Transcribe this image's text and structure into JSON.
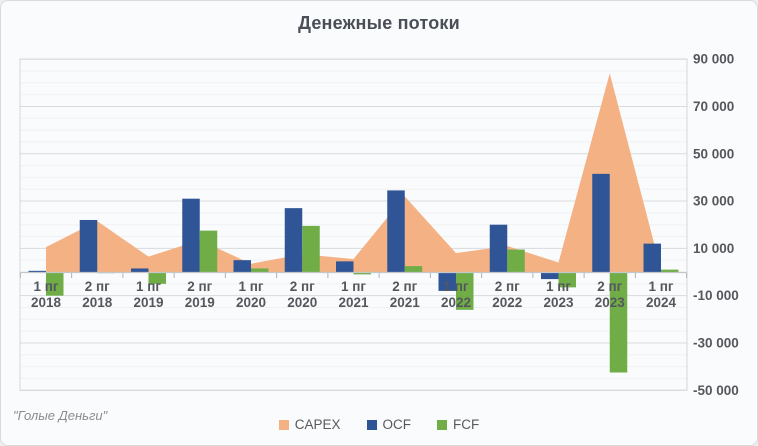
{
  "chart_data": {
    "type": "combo-area-bar",
    "title": "Денежные потоки",
    "categories": [
      {
        "period": "1 пг",
        "year": "2018"
      },
      {
        "period": "2 пг",
        "year": "2018"
      },
      {
        "period": "1 пг",
        "year": "2019"
      },
      {
        "period": "2 пг",
        "year": "2019"
      },
      {
        "period": "1 пг",
        "year": "2020"
      },
      {
        "period": "2 пг",
        "year": "2020"
      },
      {
        "period": "1 пг",
        "year": "2021"
      },
      {
        "period": "2 пг",
        "year": "2021"
      },
      {
        "period": "1 пг",
        "year": "2022"
      },
      {
        "period": "2 пг",
        "year": "2022"
      },
      {
        "period": "1 пг",
        "year": "2023"
      },
      {
        "period": "2 пг",
        "year": "2023"
      },
      {
        "period": "1 пг",
        "year": "2024"
      }
    ],
    "series": [
      {
        "name": "CAPEX",
        "type": "area",
        "color": "#F4B183",
        "values": [
          10500,
          21500,
          6500,
          13500,
          3500,
          7500,
          5500,
          32000,
          8000,
          11000,
          4000,
          84000,
          1000
        ]
      },
      {
        "name": "OCF",
        "type": "bar",
        "color": "#2F5597",
        "values": [
          500,
          22000,
          1500,
          31000,
          5000,
          27000,
          4500,
          34500,
          -8000,
          20000,
          -3000,
          41500,
          12000
        ]
      },
      {
        "name": "FCF",
        "type": "bar",
        "color": "#70AD47",
        "values": [
          -10000,
          -500,
          -5000,
          17500,
          1500,
          19500,
          -1000,
          2500,
          -16000,
          9500,
          -6500,
          -42500,
          1000
        ]
      }
    ],
    "y_axis": {
      "side": "right",
      "min": -50000,
      "max": 90000,
      "major_unit": 20000,
      "minor_unit": 5000,
      "ticks": [
        {
          "value": 90000,
          "label": "90 000"
        },
        {
          "value": 70000,
          "label": "70 000"
        },
        {
          "value": 50000,
          "label": "50 000"
        },
        {
          "value": 30000,
          "label": "30 000"
        },
        {
          "value": 10000,
          "label": "10 000"
        },
        {
          "value": -10000,
          "label": "-10 000"
        },
        {
          "value": -30000,
          "label": "-30 000"
        },
        {
          "value": -50000,
          "label": "-50 000"
        }
      ]
    },
    "grid": {
      "major_on": true,
      "minor_on": true
    },
    "legend_position": "bottom"
  },
  "source_text": "\"Голые Деньги\"",
  "colors": {
    "capex": "#F4B183",
    "ocf": "#2F5597",
    "fcf": "#70AD47",
    "title_text": "#4a4e57",
    "axis_text": "#54585d",
    "grid_major": "#d8dbde",
    "grid_minor": "#eff1f3",
    "background": "#fafbfc"
  }
}
